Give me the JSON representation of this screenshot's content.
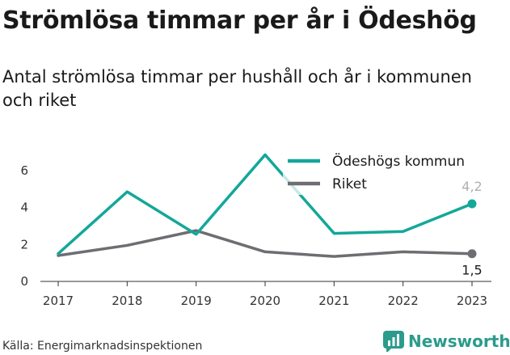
{
  "title": "Strömlösa timmar per år i Ödeshög",
  "subtitle": "Antal strömlösa timmar per hushåll och år i kommunen och riket",
  "source": "Källa: Energimarknadsinspektionen",
  "brand": {
    "name": "Newsworthy",
    "icon": "newsworthy-logo-icon",
    "color": "#2a9b8c"
  },
  "chart_data": {
    "type": "line",
    "title": "Strömlösa timmar per år i Ödeshög",
    "subtitle": "Antal strömlösa timmar per hushåll och år i kommunen och riket",
    "xlabel": "",
    "ylabel": "",
    "categories": [
      "2017",
      "2018",
      "2019",
      "2020",
      "2021",
      "2022",
      "2023"
    ],
    "ylim": [
      0,
      7
    ],
    "yticks": [
      0,
      2,
      4,
      6
    ],
    "grid": false,
    "legend": "top-right",
    "series": [
      {
        "name": "Ödeshögs kommun",
        "color": "#14a79a",
        "values": [
          1.5,
          4.85,
          2.55,
          6.85,
          2.6,
          2.7,
          4.2
        ],
        "end_label": "4,2"
      },
      {
        "name": "Riket",
        "color": "#6e6d72",
        "values": [
          1.4,
          1.95,
          2.75,
          1.6,
          1.35,
          1.6,
          1.5
        ],
        "end_label": "1,5"
      }
    ]
  }
}
